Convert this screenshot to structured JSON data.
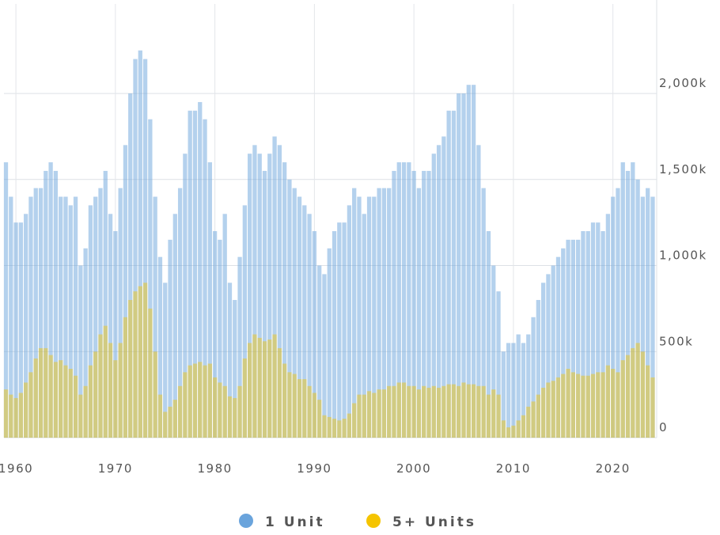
{
  "chart_data": {
    "type": "bar",
    "x": [
      1959,
      1959.5,
      1960,
      1960.5,
      1961,
      1961.5,
      1962,
      1962.5,
      1963,
      1963.5,
      1964,
      1964.5,
      1965,
      1965.5,
      1966,
      1966.5,
      1967,
      1967.5,
      1968,
      1968.5,
      1969,
      1969.5,
      1970,
      1970.5,
      1971,
      1971.5,
      1972,
      1972.5,
      1973,
      1973.5,
      1974,
      1974.5,
      1975,
      1975.5,
      1976,
      1976.5,
      1977,
      1977.5,
      1978,
      1978.5,
      1979,
      1979.5,
      1980,
      1980.5,
      1981,
      1981.5,
      1982,
      1982.5,
      1983,
      1983.5,
      1984,
      1984.5,
      1985,
      1985.5,
      1986,
      1986.5,
      1987,
      1987.5,
      1988,
      1988.5,
      1989,
      1989.5,
      1990,
      1990.5,
      1991,
      1991.5,
      1992,
      1992.5,
      1993,
      1993.5,
      1994,
      1994.5,
      1995,
      1995.5,
      1996,
      1996.5,
      1997,
      1997.5,
      1998,
      1998.5,
      1999,
      1999.5,
      2000,
      2000.5,
      2001,
      2001.5,
      2002,
      2002.5,
      2003,
      2003.5,
      2004,
      2004.5,
      2005,
      2005.5,
      2006,
      2006.5,
      2007,
      2007.5,
      2008,
      2008.5,
      2009,
      2009.5,
      2010,
      2010.5,
      2011,
      2011.5,
      2012,
      2012.5,
      2013,
      2013.5,
      2014,
      2014.5,
      2015,
      2015.5,
      2016,
      2016.5,
      2017,
      2017.5,
      2018,
      2018.5,
      2019,
      2019.5,
      2020,
      2020.5,
      2021,
      2021.5,
      2022,
      2022.5,
      2023,
      2023.5,
      2024
    ],
    "series": [
      {
        "name": "1 Unit",
        "color": "#6aa4dc",
        "values": [
          1600,
          1400,
          1250,
          1250,
          1300,
          1400,
          1450,
          1450,
          1550,
          1600,
          1550,
          1400,
          1400,
          1350,
          1400,
          1000,
          1100,
          1350,
          1400,
          1450,
          1550,
          1300,
          1200,
          1450,
          1700,
          2000,
          2200,
          2250,
          2200,
          1850,
          1400,
          1050,
          900,
          1150,
          1300,
          1450,
          1650,
          1900,
          1900,
          1950,
          1850,
          1600,
          1200,
          1150,
          1300,
          900,
          800,
          1050,
          1350,
          1650,
          1700,
          1650,
          1550,
          1650,
          1750,
          1700,
          1600,
          1500,
          1450,
          1400,
          1350,
          1300,
          1200,
          1000,
          950,
          1100,
          1200,
          1250,
          1250,
          1350,
          1450,
          1400,
          1300,
          1400,
          1400,
          1450,
          1450,
          1450,
          1550,
          1600,
          1600,
          1600,
          1550,
          1450,
          1550,
          1550,
          1650,
          1700,
          1750,
          1900,
          1900,
          2000,
          2000,
          2050,
          2050,
          1700,
          1450,
          1200,
          1000,
          850,
          500,
          550,
          550,
          600,
          550,
          600,
          700,
          800,
          900,
          950,
          1000,
          1050,
          1100,
          1150,
          1150,
          1150,
          1200,
          1200,
          1250,
          1250,
          1200,
          1300,
          1400,
          1450,
          1600,
          1550,
          1600,
          1500,
          1400,
          1450,
          1400
        ]
      },
      {
        "name": "5+ Units",
        "color": "#f5c400",
        "values": [
          280,
          250,
          230,
          260,
          320,
          380,
          460,
          520,
          520,
          480,
          440,
          450,
          420,
          400,
          360,
          250,
          300,
          420,
          500,
          600,
          650,
          550,
          450,
          550,
          700,
          800,
          850,
          880,
          900,
          750,
          500,
          250,
          150,
          180,
          220,
          300,
          380,
          420,
          430,
          440,
          420,
          430,
          350,
          320,
          300,
          240,
          230,
          300,
          460,
          550,
          600,
          580,
          560,
          570,
          600,
          520,
          430,
          380,
          370,
          340,
          340,
          300,
          260,
          220,
          130,
          120,
          110,
          100,
          110,
          140,
          200,
          250,
          250,
          270,
          260,
          280,
          280,
          300,
          300,
          320,
          320,
          300,
          300,
          280,
          300,
          290,
          300,
          290,
          300,
          310,
          310,
          300,
          320,
          310,
          310,
          300,
          300,
          250,
          280,
          250,
          100,
          60,
          70,
          100,
          130,
          180,
          210,
          250,
          290,
          320,
          330,
          350,
          370,
          400,
          380,
          370,
          360,
          360,
          370,
          380,
          380,
          420,
          400,
          380,
          450,
          480,
          520,
          550,
          500,
          420,
          350
        ]
      }
    ],
    "xlim": [
      1958.8,
      2024.4
    ],
    "xticks": [
      1960,
      1970,
      1980,
      1990,
      2000,
      2010,
      2020
    ],
    "ylim": [
      0,
      2520
    ],
    "yticks": [
      0,
      {
        "value": 500,
        "label": "500k"
      },
      {
        "value": 1000,
        "label": "1,000k"
      },
      {
        "value": 1500,
        "label": "1,500k"
      },
      {
        "value": 2000,
        "label": "2,000k"
      }
    ],
    "grid": true
  }
}
